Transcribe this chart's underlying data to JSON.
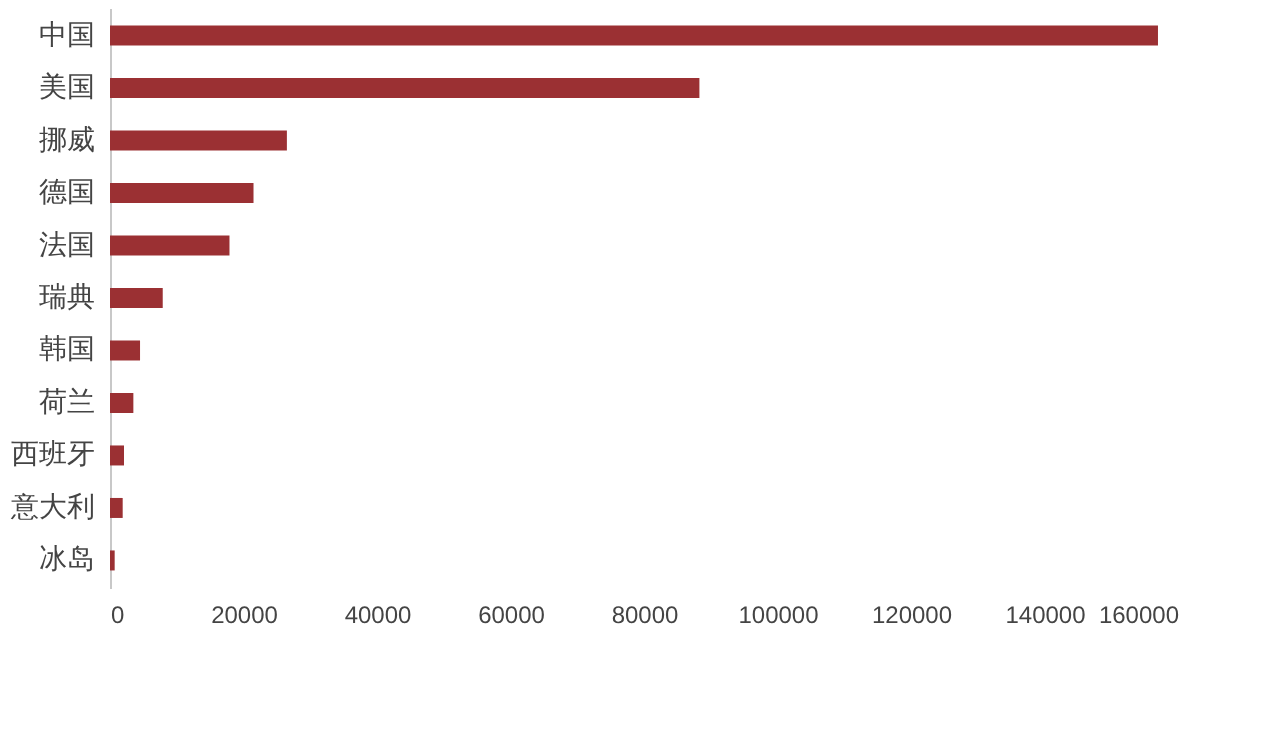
{
  "chart_data": {
    "type": "bar",
    "orientation": "horizontal",
    "categories": [
      "中国",
      "美国",
      "挪威",
      "德国",
      "法国",
      "瑞典",
      "韩国",
      "荷兰",
      "西班牙",
      "意大利",
      "冰岛"
    ],
    "values": [
      157000,
      88300,
      26500,
      21500,
      17900,
      7900,
      4500,
      3500,
      2100,
      1900,
      700
    ],
    "color": "#9b3033",
    "xlim": [
      0,
      160000
    ],
    "xticks": [
      0,
      20000,
      40000,
      60000,
      80000,
      100000,
      120000,
      140000,
      160000
    ],
    "grid": false
  }
}
